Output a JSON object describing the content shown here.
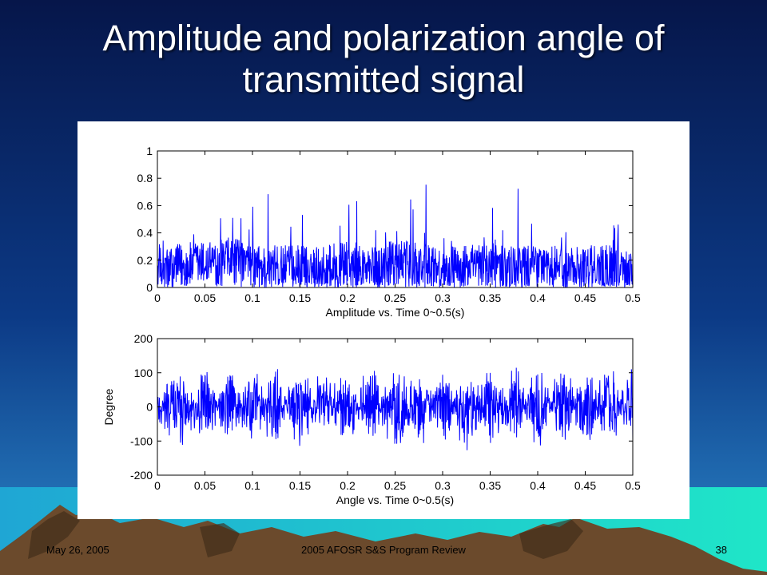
{
  "slide": {
    "title_line1": "Amplitude and polarization angle of",
    "title_line2": "transmitted signal",
    "footer_date": "May 26, 2005",
    "footer_center": "2005 AFOSR S&S Program Review",
    "footer_page": "38"
  },
  "colors": {
    "background_top": "#06164a",
    "background_bottom": "#2b86c8",
    "mountain": "#6b4a2c",
    "ground_right": "#1fd9c4",
    "signal": "#0000ff"
  },
  "chart_data": [
    {
      "type": "line",
      "xlabel": "Amplitude vs. Time 0~0.5(s)",
      "ylabel": "",
      "xlim": [
        0,
        0.5
      ],
      "ylim": [
        0,
        1
      ],
      "xticks": [
        "0",
        "0.05",
        "0.1",
        "0.15",
        "0.2",
        "0.25",
        "0.3",
        "0.35",
        "0.4",
        "0.45",
        "0.5"
      ],
      "yticks": [
        "0",
        "0.2",
        "0.4",
        "0.6",
        "0.8",
        "1"
      ],
      "grid": false,
      "series": [
        {
          "x": [
            0,
            0.025,
            0.05,
            0.075,
            0.1,
            0.125,
            0.15,
            0.175,
            0.2,
            0.225,
            0.25,
            0.275,
            0.3,
            0.325,
            0.35,
            0.375,
            0.4,
            0.425,
            0.45,
            0.475,
            0.5
          ],
          "values": [
            0.15,
            0.25,
            0.3,
            0.35,
            0.25,
            0.2,
            0.22,
            0.2,
            0.3,
            0.18,
            0.3,
            0.25,
            0.2,
            0.22,
            0.25,
            0.2,
            0.22,
            0.2,
            0.2,
            0.25,
            0.2
          ]
        }
      ]
    },
    {
      "type": "line",
      "xlabel": "Angle vs. Time 0~0.5(s)",
      "ylabel": "Degree",
      "xlim": [
        0,
        0.5
      ],
      "ylim": [
        -200,
        200
      ],
      "xticks": [
        "0",
        "0.05",
        "0.1",
        "0.15",
        "0.2",
        "0.25",
        "0.3",
        "0.35",
        "0.4",
        "0.45",
        "0.5"
      ],
      "yticks": [
        "-200",
        "-100",
        "0",
        "100",
        "200"
      ],
      "grid": false,
      "series": [
        {
          "x": [
            0,
            0.025,
            0.05,
            0.075,
            0.1,
            0.125,
            0.15,
            0.175,
            0.2,
            0.225,
            0.25,
            0.275,
            0.3,
            0.325,
            0.35,
            0.375,
            0.4,
            0.425,
            0.45,
            0.475,
            0.5
          ],
          "values": [
            0,
            120,
            -130,
            110,
            -120,
            130,
            -125,
            115,
            -120,
            125,
            -130,
            120,
            -115,
            130,
            -125,
            120,
            -130,
            125,
            -120,
            115,
            -125
          ]
        }
      ]
    }
  ]
}
